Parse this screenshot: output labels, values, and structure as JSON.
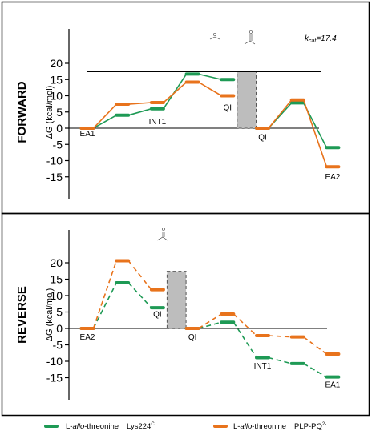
{
  "chart_data": [
    {
      "type": "line",
      "panel_label": "FORWARD",
      "ylabel": "ΔG (kcal/mol)",
      "yticks": [
        20,
        15,
        10,
        5,
        0,
        -5,
        -10,
        -15
      ],
      "ylim": [
        -16,
        22
      ],
      "positions": [
        0,
        1,
        2,
        3,
        4,
        5,
        6,
        7
      ],
      "state_labels": [
        {
          "pos": 0,
          "text": "EA1",
          "y": -1.5
        },
        {
          "pos": 2,
          "text": "INT1",
          "y": 2.2
        },
        {
          "pos": 4,
          "text": "QI",
          "y": 6.5
        },
        {
          "pos": 5,
          "text": "QI",
          "y": -2.6
        },
        {
          "pos": 7,
          "text": "EA2",
          "y": -14.8
        }
      ],
      "kcat_value": 17.4,
      "kcat_prefix": "k",
      "kcat_sub": "cat",
      "kcat_suffix": "=17.4",
      "gap_from": 4,
      "gap_to": 5,
      "series": [
        {
          "key": "green",
          "color": "#1e9a55",
          "dashed": false,
          "values": [
            0,
            4.0,
            6.0,
            16.7,
            15.0,
            0,
            7.8,
            -6.0
          ]
        },
        {
          "key": "orange",
          "color": "#e8731c",
          "dashed": false,
          "values": [
            0,
            7.4,
            7.9,
            14.2,
            10.0,
            0,
            8.7,
            -11.9
          ]
        }
      ]
    },
    {
      "type": "line",
      "panel_label": "REVERSE",
      "ylabel": "ΔG (kcal/mol)",
      "yticks": [
        20,
        15,
        10,
        5,
        0,
        -5,
        -10,
        -15
      ],
      "ylim": [
        -16,
        22
      ],
      "positions": [
        0,
        1,
        2,
        3,
        4,
        5,
        6,
        7
      ],
      "state_labels": [
        {
          "pos": 0,
          "text": "EA2",
          "y": -2.4
        },
        {
          "pos": 2,
          "text": "QI",
          "y": 4.5
        },
        {
          "pos": 3,
          "text": "QI",
          "y": -2.4
        },
        {
          "pos": 5,
          "text": "INT1",
          "y": -11.2
        },
        {
          "pos": 7,
          "text": "EA1",
          "y": -17.0
        }
      ],
      "gap_from": 2,
      "gap_to": 3,
      "gap_top": 17.4,
      "series": [
        {
          "key": "green",
          "color": "#1e9a55",
          "dashed": true,
          "values": [
            0,
            13.9,
            6.3,
            0,
            1.9,
            -8.9,
            -10.7,
            -14.8
          ]
        },
        {
          "key": "orange",
          "color": "#e8731c",
          "dashed": true,
          "values": [
            0,
            20.6,
            11.8,
            0,
            4.4,
            -2.2,
            -2.6,
            -7.8
          ]
        }
      ]
    }
  ],
  "legend": [
    {
      "color": "#1e9a55",
      "label_a": "L-",
      "label_italic": "allo",
      "label_b": "-threonine",
      "label_c": "Lys224",
      "sup": "C"
    },
    {
      "color": "#e8731c",
      "label_a": "L-",
      "label_italic": "allo",
      "label_b": "-threonine",
      "label_c": "PLP-PO",
      "sup": "2-",
      "sub": "4"
    }
  ]
}
